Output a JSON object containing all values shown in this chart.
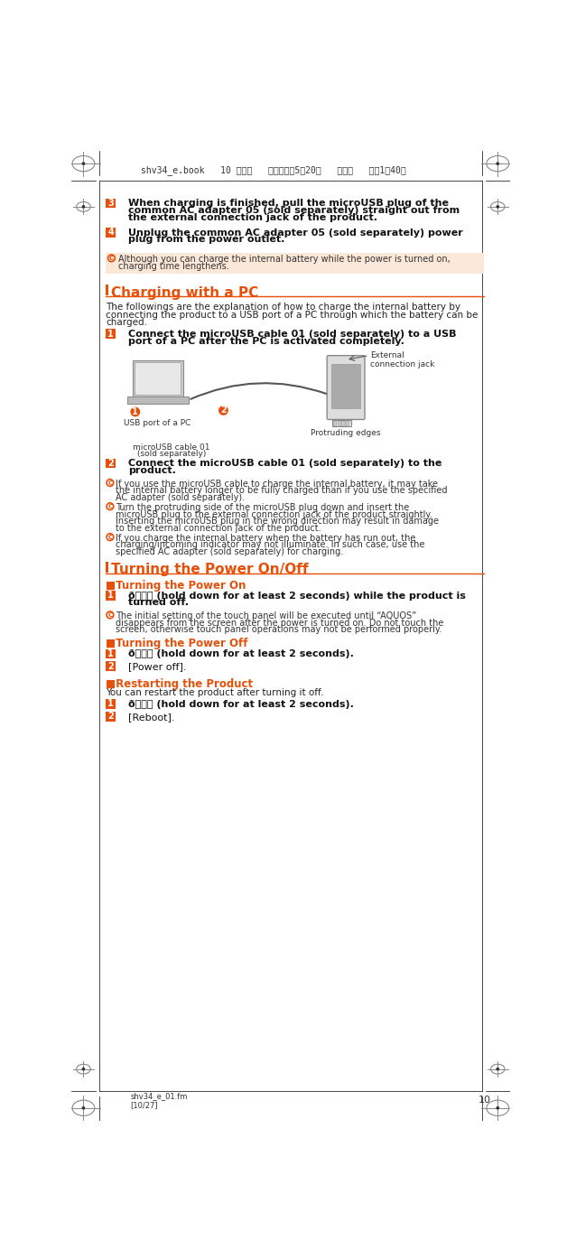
{
  "page_bg": "#ffffff",
  "header_text": "shv34_e.book   10 ページ   ２０１６年５月20日   金曜日   午後１時40分",
  "footer_text": "shv34_e_01.fm\n[10/27]",
  "page_number": "10",
  "orange": "#e8500a",
  "dark_gray": "#333333",
  "light_orange_bg": "#fce8d8",
  "section_bar_color": "#e8500a",
  "body_text_color": "#333333",
  "step_bg_orange": "#e8500a",
  "step_text_white": "#ffffff",
  "note_circle_color": "#e8500a"
}
